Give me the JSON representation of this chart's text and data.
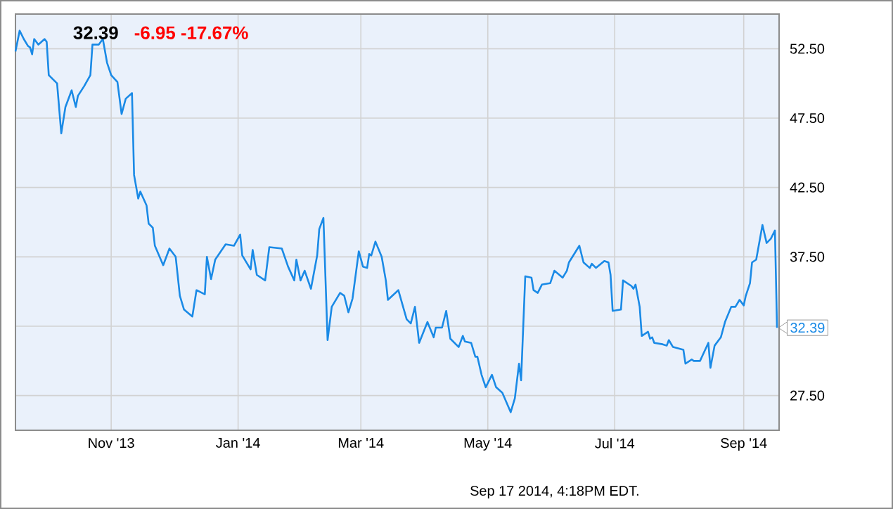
{
  "chart_data": {
    "type": "line",
    "title": "32.39",
    "subtitle": "-6.95   -17.67%",
    "x": [
      "2013-09-16",
      "2013-09-18",
      "2013-09-20",
      "2013-09-22",
      "2013-09-23",
      "2013-09-24",
      "2013-09-25",
      "2013-09-27",
      "2013-09-30",
      "2013-10-01",
      "2013-10-02",
      "2013-10-06",
      "2013-10-08",
      "2013-10-10",
      "2013-10-13",
      "2013-10-15",
      "2013-10-16",
      "2013-10-19",
      "2013-10-22",
      "2013-10-23",
      "2013-10-26",
      "2013-10-28",
      "2013-10-30",
      "2013-11-01",
      "2013-11-04",
      "2013-11-06",
      "2013-11-08",
      "2013-11-11",
      "2013-11-12",
      "2013-11-14",
      "2013-11-15",
      "2013-11-18",
      "2013-11-19",
      "2013-11-21",
      "2013-11-22",
      "2013-11-26",
      "2013-11-29",
      "2013-12-02",
      "2013-12-04",
      "2013-12-06",
      "2013-12-10",
      "2013-12-12",
      "2013-12-16",
      "2013-12-17",
      "2013-12-19",
      "2013-12-21",
      "2013-12-26",
      "2013-12-30",
      "2014-01-02",
      "2014-01-03",
      "2014-01-07",
      "2014-01-08",
      "2014-01-10",
      "2014-01-14",
      "2014-01-16",
      "2014-01-22",
      "2014-01-25",
      "2014-01-28",
      "2014-01-29",
      "2014-01-31",
      "2014-02-02",
      "2014-02-05",
      "2014-02-08",
      "2014-02-09",
      "2014-02-11",
      "2014-02-13",
      "2014-02-15",
      "2014-02-19",
      "2014-02-21",
      "2014-02-23",
      "2014-02-25",
      "2014-02-28",
      "2014-03-02",
      "2014-03-04",
      "2014-03-05",
      "2014-03-06",
      "2014-03-08",
      "2014-03-11",
      "2014-03-13",
      "2014-03-14",
      "2014-03-19",
      "2014-03-23",
      "2014-03-25",
      "2014-03-27",
      "2014-03-29",
      "2014-04-02",
      "2014-04-05",
      "2014-04-06",
      "2014-04-09",
      "2014-04-11",
      "2014-04-13",
      "2014-04-17",
      "2014-04-19",
      "2014-04-20",
      "2014-04-23",
      "2014-04-25",
      "2014-04-26",
      "2014-04-28",
      "2014-04-30",
      "2014-05-03",
      "2014-05-05",
      "2014-05-08",
      "2014-05-10",
      "2014-05-12",
      "2014-05-14",
      "2014-05-16",
      "2014-05-17",
      "2014-05-19",
      "2014-05-22",
      "2014-05-23",
      "2014-05-25",
      "2014-05-27",
      "2014-05-31",
      "2014-06-02",
      "2014-06-06",
      "2014-06-08",
      "2014-06-09",
      "2014-06-14",
      "2014-06-16",
      "2014-06-19",
      "2014-06-20",
      "2014-06-22",
      "2014-06-26",
      "2014-06-28",
      "2014-06-29",
      "2014-06-30",
      "2014-07-04",
      "2014-07-05",
      "2014-07-09",
      "2014-07-10",
      "2014-07-11",
      "2014-07-13",
      "2014-07-14",
      "2014-07-17",
      "2014-07-18",
      "2014-07-19",
      "2014-07-20",
      "2014-07-24",
      "2014-07-26",
      "2014-07-27",
      "2014-07-29",
      "2014-08-03",
      "2014-08-04",
      "2014-08-07",
      "2014-08-08",
      "2014-08-11",
      "2014-08-15",
      "2014-08-16",
      "2014-08-18",
      "2014-08-21",
      "2014-08-23",
      "2014-08-26",
      "2014-08-28",
      "2014-08-30",
      "2014-09-01",
      "2014-09-02",
      "2014-09-04",
      "2014-09-05",
      "2014-09-07",
      "2014-09-10",
      "2014-09-12",
      "2014-09-14",
      "2014-09-16",
      "2014-09-17"
    ],
    "series": [
      {
        "color": "#1a8ae6",
        "values": [
          52.3,
          53.8,
          53.2,
          52.7,
          52.6,
          52.1,
          53.2,
          52.8,
          53.2,
          53.0,
          50.6,
          50.0,
          46.4,
          48.3,
          49.5,
          48.3,
          49.1,
          49.8,
          50.6,
          52.8,
          52.8,
          53.2,
          51.5,
          50.6,
          50.1,
          47.8,
          48.9,
          49.3,
          43.4,
          41.7,
          42.2,
          41.2,
          39.9,
          39.6,
          38.3,
          36.9,
          38.1,
          37.5,
          34.7,
          33.7,
          33.2,
          35.1,
          34.8,
          37.5,
          35.9,
          37.3,
          38.4,
          38.3,
          39.1,
          37.6,
          36.6,
          38.0,
          36.2,
          35.8,
          38.2,
          38.1,
          36.8,
          35.8,
          37.3,
          35.8,
          36.5,
          35.2,
          37.6,
          39.5,
          40.3,
          31.5,
          33.9,
          34.9,
          34.7,
          33.5,
          34.5,
          37.9,
          36.8,
          36.7,
          37.7,
          37.6,
          38.6,
          37.5,
          35.8,
          34.4,
          35.1,
          33.0,
          32.7,
          33.9,
          31.3,
          32.8,
          31.7,
          32.4,
          32.4,
          33.6,
          31.6,
          31.0,
          31.8,
          31.4,
          31.3,
          30.3,
          30.3,
          29.0,
          28.1,
          29.0,
          28.1,
          27.7,
          27.0,
          26.3,
          27.3,
          29.8,
          28.6,
          36.1,
          36.0,
          35.1,
          34.9,
          35.5,
          35.6,
          36.5,
          36.0,
          36.5,
          37.1,
          38.3,
          37.1,
          36.7,
          37.0,
          36.7,
          37.2,
          37.1,
          36.2,
          33.6,
          33.7,
          35.8,
          35.4,
          35.2,
          35.5,
          33.9,
          31.8,
          32.1,
          31.6,
          31.7,
          31.3,
          31.2,
          31.1,
          31.5,
          31.0,
          30.8,
          29.8,
          30.1,
          30.0,
          30.0,
          31.3,
          29.5,
          31.1,
          31.7,
          32.8,
          33.9,
          33.9,
          34.4,
          34.0,
          34.7,
          35.6,
          37.1,
          37.3,
          39.8,
          38.5,
          38.8,
          39.4,
          32.39
        ]
      }
    ],
    "xlim": [
      "2013-09-16",
      "2014-09-18"
    ],
    "xticks": [
      {
        "value": "2013-11-01",
        "label": "Nov '13"
      },
      {
        "value": "2014-01-01",
        "label": "Jan '14"
      },
      {
        "value": "2014-03-01",
        "label": "Mar '14"
      },
      {
        "value": "2014-05-01",
        "label": "May '14"
      },
      {
        "value": "2014-07-01",
        "label": "Jul '14"
      },
      {
        "value": "2014-09-01",
        "label": "Sep '14"
      }
    ],
    "ylim": [
      25,
      55
    ],
    "yticks": [
      {
        "value": 27.5,
        "label": "27.50"
      },
      {
        "value": 32.5,
        "label": null
      },
      {
        "value": 37.5,
        "label": "37.50"
      },
      {
        "value": 42.5,
        "label": "42.50"
      },
      {
        "value": 47.5,
        "label": "47.50"
      },
      {
        "value": 52.5,
        "label": "52.50"
      }
    ],
    "annotations": [
      {
        "text": "32.39",
        "x": "2014-09-17",
        "y": 32.39
      },
      "Sep 17 2014, 4:18PM EDT."
    ],
    "grid": true,
    "marker": "none",
    "line_style": "solid"
  }
}
